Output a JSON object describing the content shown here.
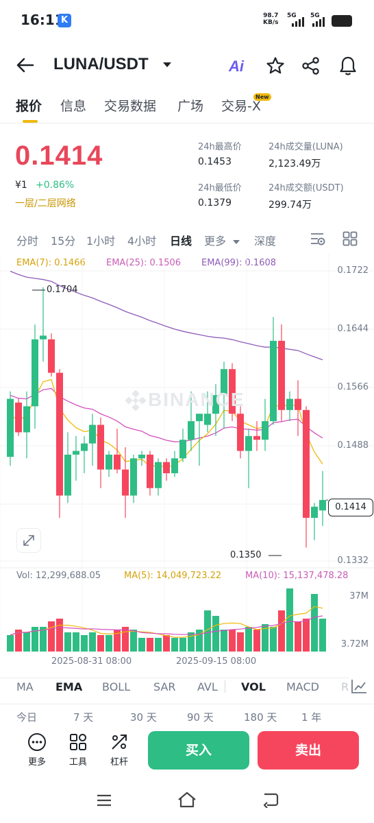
{
  "status_bar": {
    "time": "16:11",
    "app_icon_letter": "K",
    "net_speed": "98.7",
    "net_unit": "KB/s",
    "sim1": "5G",
    "sim2": "5G"
  },
  "header": {
    "pair": "LUNA/USDT",
    "ai_label": "Ai"
  },
  "tabs": [
    {
      "label": "报价",
      "active": true
    },
    {
      "label": "信息",
      "active": false
    },
    {
      "label": "交易数据",
      "active": false
    },
    {
      "label": "广场",
      "active": false
    },
    {
      "label": "交易-X",
      "active": false,
      "badge": "New"
    }
  ],
  "price": {
    "last": "0.1414",
    "fiat": "¥1",
    "change": "+0.86%",
    "network": "一层/二层网络"
  },
  "stats": {
    "high_label": "24h最高价",
    "high": "0.1453",
    "low_label": "24h最低价",
    "low": "0.1379",
    "vol_luna_label": "24h成交量(LUNA)",
    "vol_luna": "2,123.49万",
    "vol_usdt_label": "24h成交额(USDT)",
    "vol_usdt": "299.74万"
  },
  "intervals": [
    {
      "label": "分时",
      "active": false
    },
    {
      "label": "15分",
      "active": false
    },
    {
      "label": "1小时",
      "active": false
    },
    {
      "label": "4小时",
      "active": false
    },
    {
      "label": "日线",
      "active": true
    },
    {
      "label": "更多",
      "active": false
    },
    {
      "label": "深度",
      "active": false
    }
  ],
  "ema_legend": {
    "ema7": "EMA(7): 0.1466",
    "ema25": "EMA(25): 0.1506",
    "ema99": "EMA(99): 0.1608"
  },
  "vol_legend": {
    "vol": "Vol: 12,299,688.05",
    "ma5": "MA(5): 14,049,723.22",
    "ma10": "MA(10): 15,137,478.28"
  },
  "chart_labels": {
    "watermark": "BINANCE",
    "high_marker": "0.1704",
    "low_marker": "0.1350",
    "current_price_tag": "0.1414",
    "vol_max": "37M",
    "vol_min": "3.72M",
    "date_1": "2025-08-31 08:00",
    "date_2": "2025-09-15 08:00"
  },
  "colors": {
    "up": "#2ebd85",
    "down": "#f6465d",
    "ema7": "#f0b90b",
    "ema25": "#d44fbe",
    "ema99": "#8e5bb8"
  },
  "chart_data": {
    "type": "candlestick",
    "interval": "1d",
    "y_ticks": [
      "0.1722",
      "0.1644",
      "0.1566",
      "0.1488",
      "0.1410",
      "0.1332"
    ],
    "y_range": [
      0.1332,
      0.1722
    ],
    "candles": [
      {
        "o": 0.1472,
        "h": 0.156,
        "l": 0.146,
        "c": 0.155
      },
      {
        "o": 0.1545,
        "h": 0.155,
        "l": 0.15,
        "c": 0.1505
      },
      {
        "o": 0.1505,
        "h": 0.156,
        "l": 0.147,
        "c": 0.154
      },
      {
        "o": 0.154,
        "h": 0.165,
        "l": 0.151,
        "c": 0.163
      },
      {
        "o": 0.163,
        "h": 0.17,
        "l": 0.16,
        "c": 0.1635
      },
      {
        "o": 0.163,
        "h": 0.1638,
        "l": 0.158,
        "c": 0.1585
      },
      {
        "o": 0.1585,
        "h": 0.159,
        "l": 0.139,
        "c": 0.142
      },
      {
        "o": 0.142,
        "h": 0.1505,
        "l": 0.141,
        "c": 0.1475
      },
      {
        "o": 0.1475,
        "h": 0.15,
        "l": 0.144,
        "c": 0.148
      },
      {
        "o": 0.148,
        "h": 0.15,
        "l": 0.145,
        "c": 0.149
      },
      {
        "o": 0.149,
        "h": 0.153,
        "l": 0.146,
        "c": 0.1515
      },
      {
        "o": 0.1515,
        "h": 0.1525,
        "l": 0.143,
        "c": 0.1455
      },
      {
        "o": 0.1455,
        "h": 0.148,
        "l": 0.1445,
        "c": 0.1475
      },
      {
        "o": 0.1475,
        "h": 0.151,
        "l": 0.145,
        "c": 0.1455
      },
      {
        "o": 0.1455,
        "h": 0.1485,
        "l": 0.139,
        "c": 0.142
      },
      {
        "o": 0.142,
        "h": 0.1475,
        "l": 0.141,
        "c": 0.147
      },
      {
        "o": 0.147,
        "h": 0.148,
        "l": 0.146,
        "c": 0.1475
      },
      {
        "o": 0.1475,
        "h": 0.148,
        "l": 0.142,
        "c": 0.143
      },
      {
        "o": 0.143,
        "h": 0.147,
        "l": 0.142,
        "c": 0.1465
      },
      {
        "o": 0.1465,
        "h": 0.147,
        "l": 0.144,
        "c": 0.145
      },
      {
        "o": 0.145,
        "h": 0.148,
        "l": 0.1445,
        "c": 0.147
      },
      {
        "o": 0.147,
        "h": 0.151,
        "l": 0.1465,
        "c": 0.1495
      },
      {
        "o": 0.1495,
        "h": 0.156,
        "l": 0.148,
        "c": 0.152
      },
      {
        "o": 0.152,
        "h": 0.153,
        "l": 0.146,
        "c": 0.153
      },
      {
        "o": 0.1515,
        "h": 0.156,
        "l": 0.1505,
        "c": 0.153
      },
      {
        "o": 0.153,
        "h": 0.157,
        "l": 0.15,
        "c": 0.1555
      },
      {
        "o": 0.1555,
        "h": 0.16,
        "l": 0.151,
        "c": 0.159
      },
      {
        "o": 0.159,
        "h": 0.1598,
        "l": 0.152,
        "c": 0.153
      },
      {
        "o": 0.153,
        "h": 0.154,
        "l": 0.147,
        "c": 0.148
      },
      {
        "o": 0.148,
        "h": 0.151,
        "l": 0.143,
        "c": 0.15
      },
      {
        "o": 0.15,
        "h": 0.152,
        "l": 0.148,
        "c": 0.1495
      },
      {
        "o": 0.1495,
        "h": 0.155,
        "l": 0.148,
        "c": 0.152
      },
      {
        "o": 0.152,
        "h": 0.166,
        "l": 0.1515,
        "c": 0.1628
      },
      {
        "o": 0.1628,
        "h": 0.165,
        "l": 0.152,
        "c": 0.1535
      },
      {
        "o": 0.1535,
        "h": 0.156,
        "l": 0.152,
        "c": 0.155
      },
      {
        "o": 0.155,
        "h": 0.1575,
        "l": 0.15,
        "c": 0.1535
      },
      {
        "o": 0.1535,
        "h": 0.154,
        "l": 0.135,
        "c": 0.139
      },
      {
        "o": 0.139,
        "h": 0.141,
        "l": 0.136,
        "c": 0.1405
      },
      {
        "o": 0.14,
        "h": 0.1453,
        "l": 0.1379,
        "c": 0.1414
      }
    ],
    "volumes": [
      6,
      8,
      7,
      9,
      9,
      11,
      12,
      7,
      7,
      6,
      7,
      6,
      6,
      8,
      9,
      8,
      5,
      5,
      5,
      6,
      5,
      5,
      7,
      8,
      15,
      13,
      8,
      8,
      7,
      9,
      8,
      10,
      9,
      15,
      23,
      11,
      12,
      21,
      12
    ]
  },
  "indicators": [
    {
      "label": "MA",
      "active": false
    },
    {
      "label": "EMA",
      "active": true
    },
    {
      "label": "BOLL",
      "active": false
    },
    {
      "label": "SAR",
      "active": false
    },
    {
      "label": "AVL",
      "active": false
    },
    {
      "label": "VOL",
      "active": true
    },
    {
      "label": "MACD",
      "active": false
    },
    {
      "label": "R",
      "active": false
    }
  ],
  "ranges": [
    "今日",
    "7 天",
    "30 天",
    "90 天",
    "180 天",
    "1 年"
  ],
  "tools": [
    {
      "label": "更多",
      "icon": "more-icon"
    },
    {
      "label": "工具",
      "icon": "tools-icon"
    },
    {
      "label": "杠杆",
      "icon": "leverage-icon"
    }
  ],
  "actions": {
    "buy": "买入",
    "sell": "卖出"
  }
}
